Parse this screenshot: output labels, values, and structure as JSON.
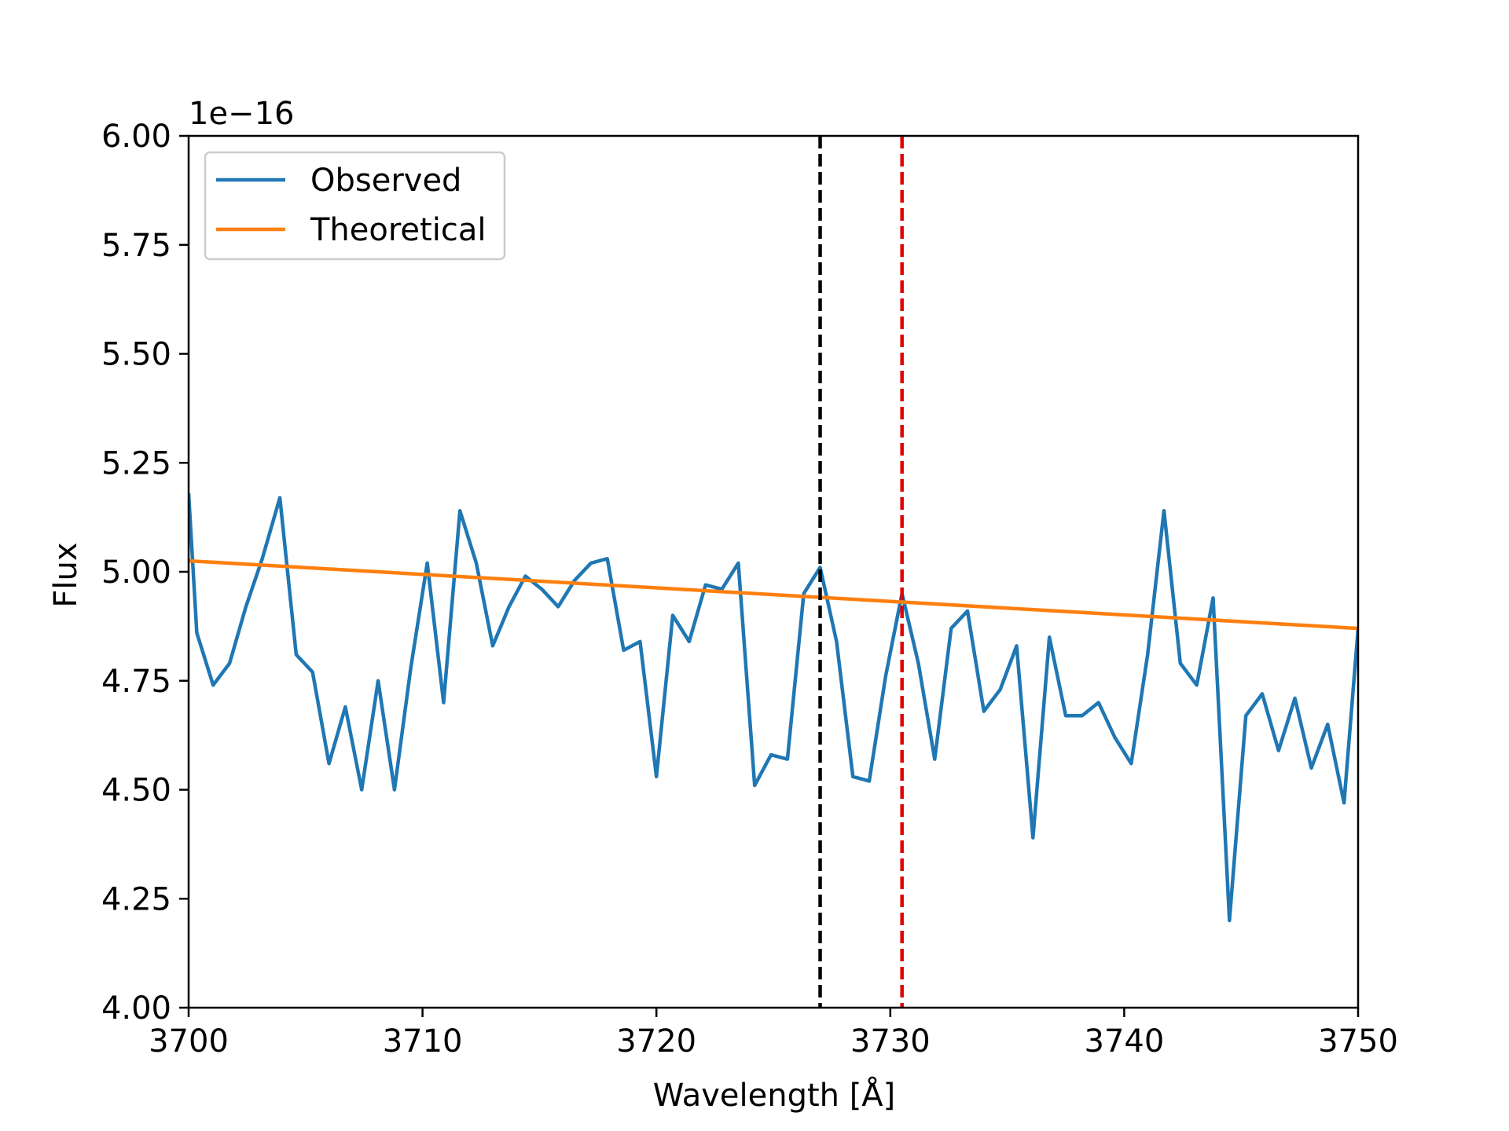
{
  "chart_data": {
    "type": "line",
    "xlabel": "Wavelength [Å]",
    "ylabel": "Flux",
    "y_offset_label": "1e−16",
    "xlim": [
      3700,
      3750
    ],
    "ylim": [
      4.0,
      6.0
    ],
    "xticks": [
      "3700",
      "3710",
      "3720",
      "3730",
      "3740",
      "3750"
    ],
    "yticks": [
      "4.00",
      "4.25",
      "4.50",
      "4.75",
      "5.00",
      "5.25",
      "5.50",
      "5.75",
      "6.00"
    ],
    "legend_position": "upper-left",
    "grid": false,
    "series": [
      {
        "name": "Observed",
        "color": "#1f77b4",
        "x": [
          3700.0,
          3700.35,
          3701.05,
          3701.75,
          3702.45,
          3703.15,
          3703.9,
          3704.6,
          3705.3,
          3706.0,
          3706.7,
          3707.4,
          3708.1,
          3708.8,
          3709.5,
          3710.2,
          3710.9,
          3711.6,
          3712.3,
          3713.0,
          3713.7,
          3714.4,
          3715.1,
          3715.8,
          3716.5,
          3717.2,
          3717.9,
          3718.6,
          3719.3,
          3720.0,
          3720.7,
          3721.4,
          3722.1,
          3722.8,
          3723.5,
          3724.2,
          3724.9,
          3725.6,
          3726.3,
          3727.0,
          3727.7,
          3728.4,
          3729.1,
          3729.8,
          3730.5,
          3731.2,
          3731.9,
          3732.6,
          3733.3,
          3734.0,
          3734.7,
          3735.4,
          3736.1,
          3736.8,
          3737.5,
          3738.2,
          3738.9,
          3739.6,
          3740.3,
          3741.0,
          3741.7,
          3742.4,
          3743.1,
          3743.8,
          3744.5,
          3745.2,
          3745.9,
          3746.6,
          3747.3,
          3748.0,
          3748.7,
          3749.4,
          3750.0
        ],
        "y": [
          5.18,
          4.86,
          4.74,
          4.79,
          4.92,
          5.03,
          5.17,
          4.81,
          4.77,
          4.56,
          4.69,
          4.5,
          4.75,
          4.5,
          4.78,
          5.02,
          4.7,
          5.14,
          5.02,
          4.83,
          4.92,
          4.99,
          4.96,
          4.92,
          4.98,
          5.02,
          5.03,
          4.82,
          4.84,
          4.53,
          4.9,
          4.84,
          4.97,
          4.96,
          5.02,
          4.51,
          4.58,
          4.57,
          4.95,
          5.01,
          4.84,
          4.53,
          4.52,
          4.76,
          4.95,
          4.79,
          4.57,
          4.87,
          4.91,
          4.68,
          4.73,
          4.83,
          4.39,
          4.85,
          4.67,
          4.67,
          4.7,
          4.62,
          4.56,
          4.81,
          5.14,
          4.79,
          4.74,
          4.94,
          4.2,
          4.67,
          4.72,
          4.59,
          4.71,
          4.55,
          4.65,
          4.47,
          4.87
        ]
      },
      {
        "name": "Theoretical",
        "color": "#ff7f0e",
        "x": [
          3700,
          3750
        ],
        "y": [
          5.025,
          4.87
        ]
      }
    ],
    "vlines": [
      {
        "x": 3727.0,
        "color": "#000000",
        "style": "dashed"
      },
      {
        "x": 3730.5,
        "color": "#e00000",
        "style": "dashed"
      }
    ]
  }
}
